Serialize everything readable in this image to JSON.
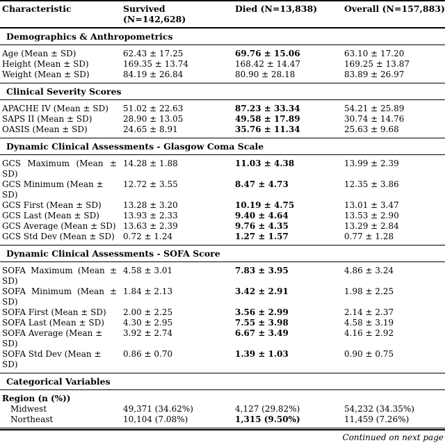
{
  "page": {
    "background_color": "#ffffff",
    "text_color": "#000000",
    "rule_color": "#000000"
  },
  "table": {
    "header": {
      "characteristic": "Characteristic",
      "survived_line1": "Survived",
      "survived_line2": "(N=142,628)",
      "died": "Died (N=13,838)",
      "overall": "Overall (N=157,883)"
    },
    "sections": [
      {
        "title": "Demographics & Anthropometrics",
        "rows": [
          {
            "label": "Age (Mean ± SD)",
            "survived": "62.43 ± 17.25",
            "died": "69.76 ± 15.06",
            "died_bold": true,
            "overall": "63.10 ± 17.20"
          },
          {
            "label": "Height (Mean ± SD)",
            "survived": "169.35 ± 13.74",
            "died": "168.42 ± 14.47",
            "died_bold": false,
            "overall": "169.25 ± 13.87"
          },
          {
            "label": "Weight (Mean ± SD)",
            "survived": "84.19 ± 26.84",
            "died": "80.90 ± 28.18",
            "died_bold": false,
            "overall": "83.89 ± 26.97"
          }
        ]
      },
      {
        "title": "Clinical Severity Scores",
        "rows": [
          {
            "label": "APACHE IV (Mean ± SD)",
            "survived": "51.02 ± 22.63",
            "died": "87.23 ± 33.34",
            "died_bold": true,
            "overall": "54.21 ± 25.89"
          },
          {
            "label": "SAPS II (Mean ± SD)",
            "survived": "28.90 ± 13.05",
            "died": "49.58 ± 17.89",
            "died_bold": true,
            "overall": "30.74 ± 14.76"
          },
          {
            "label": "OASIS (Mean ± SD)",
            "survived": "24.65 ± 8.91",
            "died": "35.76 ± 11.34",
            "died_bold": true,
            "overall": "25.63 ± 9.68"
          }
        ]
      },
      {
        "title": "Dynamic Clinical Assessments - Glasgow Coma Scale",
        "rows": [
          {
            "label_lines": [
              "GCS Maximum (Mean ±",
              "SD)"
            ],
            "survived": "14.28 ± 1.88",
            "died": "11.03 ± 4.38",
            "died_bold": true,
            "overall": "13.99 ± 2.39"
          },
          {
            "label": "GCS Minimum (Mean ± SD)",
            "survived": "12.72 ± 3.55",
            "died": "8.47 ± 4.73",
            "died_bold": true,
            "overall": "12.35 ± 3.86"
          },
          {
            "label": "GCS First (Mean ± SD)",
            "survived": "13.28 ± 3.20",
            "died": "10.19 ± 4.75",
            "died_bold": true,
            "overall": "13.01 ± 3.47"
          },
          {
            "label": "GCS Last (Mean ± SD)",
            "survived": "13.93 ± 2.33",
            "died": "9.40 ± 4.64",
            "died_bold": true,
            "overall": "13.53 ± 2.90"
          },
          {
            "label": "GCS Average (Mean ± SD)",
            "survived": "13.63 ± 2.39",
            "died": "9.76 ± 4.35",
            "died_bold": true,
            "overall": "13.29 ± 2.84"
          },
          {
            "label": "GCS Std Dev (Mean ± SD)",
            "survived": "0.72 ± 1.24",
            "died": "1.27 ± 1.57",
            "died_bold": true,
            "overall": "0.77 ± 1.28"
          }
        ]
      },
      {
        "title": "Dynamic Clinical Assessments - SOFA Score",
        "rows": [
          {
            "label_lines": [
              "SOFA Maximum (Mean ±",
              "SD)"
            ],
            "survived": "4.58 ± 3.01",
            "died": "7.83 ± 3.95",
            "died_bold": true,
            "overall": "4.86 ± 3.24"
          },
          {
            "label_lines": [
              "SOFA Minimum (Mean ±",
              "SD)"
            ],
            "survived": "1.84 ± 2.13",
            "died": "3.42 ± 2.91",
            "died_bold": true,
            "overall": "1.98 ± 2.25"
          },
          {
            "label": "SOFA First (Mean ± SD)",
            "survived": "2.00 ± 2.25",
            "died": "3.56 ± 2.99",
            "died_bold": true,
            "overall": "2.14 ± 2.37"
          },
          {
            "label": "SOFA Last (Mean ± SD)",
            "survived": "4.30 ± 2.95",
            "died": "7.55 ± 3.98",
            "died_bold": true,
            "overall": "4.58 ± 3.19"
          },
          {
            "label": "SOFA Average (Mean ± SD)",
            "survived": "3.92 ± 2.74",
            "died": "6.67 ± 3.49",
            "died_bold": true,
            "overall": "4.16 ± 2.92"
          },
          {
            "label": "SOFA Std Dev (Mean ± SD)",
            "survived": "0.86 ± 0.70",
            "died": "1.39 ± 1.03",
            "died_bold": true,
            "overall": "0.90 ± 0.75"
          }
        ]
      },
      {
        "title": "Categorical Variables",
        "rows": [
          {
            "label": "Region (n (%))",
            "bold_label": true,
            "survived": "",
            "died": "",
            "died_bold": false,
            "overall": ""
          },
          {
            "label": "Midwest",
            "indent": true,
            "survived": "49,371 (34.62%)",
            "died": "4,127 (29.82%)",
            "died_bold": false,
            "overall": "54,232 (34.35%)"
          },
          {
            "label": "Northeast",
            "indent": true,
            "survived": "10,104 (7.08%)",
            "died": "1,315 (9.50%)",
            "died_bold": true,
            "overall": "11,459 (7.26%)"
          }
        ]
      }
    ],
    "footer": {
      "continued": "Continued on next page"
    }
  }
}
